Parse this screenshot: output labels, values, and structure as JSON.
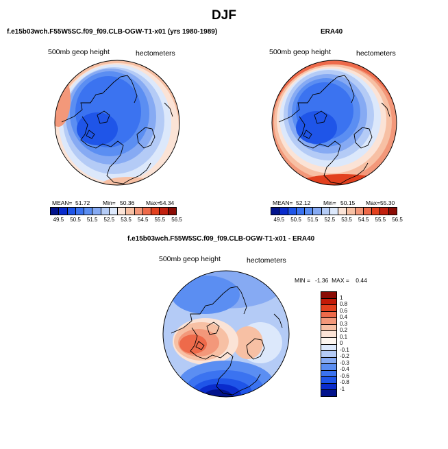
{
  "title": "DJF",
  "panels": [
    {
      "title": "f.e15b03wch.F55W5SC.f09_f09.CLB-OGW-T1-x01 (yrs 1980-1989)",
      "variable": "500mb geop height",
      "units": "hectometers",
      "mean_label": "MEAN=",
      "mean": "51.72",
      "min_label": "Min=",
      "min": "50.36",
      "max_label": "Max=",
      "max": "54.34"
    },
    {
      "title": "ERA40",
      "variable": "500mb geop height",
      "units": "hectometers",
      "mean_label": "MEAN=",
      "mean": "52.12",
      "min_label": "Min=",
      "min": "50.15",
      "max_label": "Max=",
      "max": "55.30"
    },
    {
      "title": "f.e15b03wch.F55W5SC.f09_f09.CLB-OGW-T1-x01 - ERA40",
      "variable": "500mb geop height",
      "units": "hectometers",
      "minmax_text": "MIN =   -1.36  MAX =    0.44"
    }
  ],
  "chart_data": [
    {
      "type": "heatmap",
      "projection": "polar-stereographic-north",
      "field": "500mb geop height",
      "units": "hectometers",
      "stats": {
        "mean": 51.72,
        "min": 50.36,
        "max": 54.34
      },
      "levels": [
        "49.5",
        "50.5",
        "51.5",
        "52.5",
        "53.5",
        "54.5",
        "55.5",
        "56.5"
      ],
      "colors": [
        "#02138c",
        "#0a2ccc",
        "#1f55e8",
        "#3b73f0",
        "#5b8ef2",
        "#86aaf3",
        "#b4cbf6",
        "#dce8fb",
        "#fbe3d6",
        "#f7c0a4",
        "#f3987a",
        "#ee6a4a",
        "#e2401e",
        "#c22110",
        "#8a0c05"
      ]
    },
    {
      "type": "heatmap",
      "projection": "polar-stereographic-north",
      "field": "500mb geop height",
      "units": "hectometers",
      "stats": {
        "mean": 52.12,
        "min": 50.15,
        "max": 55.3
      },
      "levels": [
        "49.5",
        "50.5",
        "51.5",
        "52.5",
        "53.5",
        "54.5",
        "55.5",
        "56.5"
      ],
      "colors": [
        "#02138c",
        "#0a2ccc",
        "#1f55e8",
        "#3b73f0",
        "#5b8ef2",
        "#86aaf3",
        "#b4cbf6",
        "#dce8fb",
        "#fbe3d6",
        "#f7c0a4",
        "#f3987a",
        "#ee6a4a",
        "#e2401e",
        "#c22110",
        "#8a0c05"
      ]
    },
    {
      "type": "heatmap",
      "projection": "polar-stereographic-north",
      "field": "500mb geop height difference",
      "units": "hectometers",
      "stats": {
        "min": -1.36,
        "max": 0.44
      },
      "levels": [
        "1",
        "0.8",
        "0.6",
        "0.4",
        "0.3",
        "0.2",
        "0.1",
        "0",
        "-0.1",
        "-0.2",
        "-0.3",
        "-0.4",
        "-0.6",
        "-0.8",
        "-1"
      ],
      "colors": [
        "#8a0c05",
        "#c21a08",
        "#e2401e",
        "#ee6a4a",
        "#f3987a",
        "#f7c0a4",
        "#fbe3d6",
        "#fdf6f0",
        "#dce8fb",
        "#b4cbf6",
        "#86aaf3",
        "#5b8ef2",
        "#3b73f0",
        "#1f55e8",
        "#0a2ccc",
        "#02138c"
      ]
    }
  ]
}
